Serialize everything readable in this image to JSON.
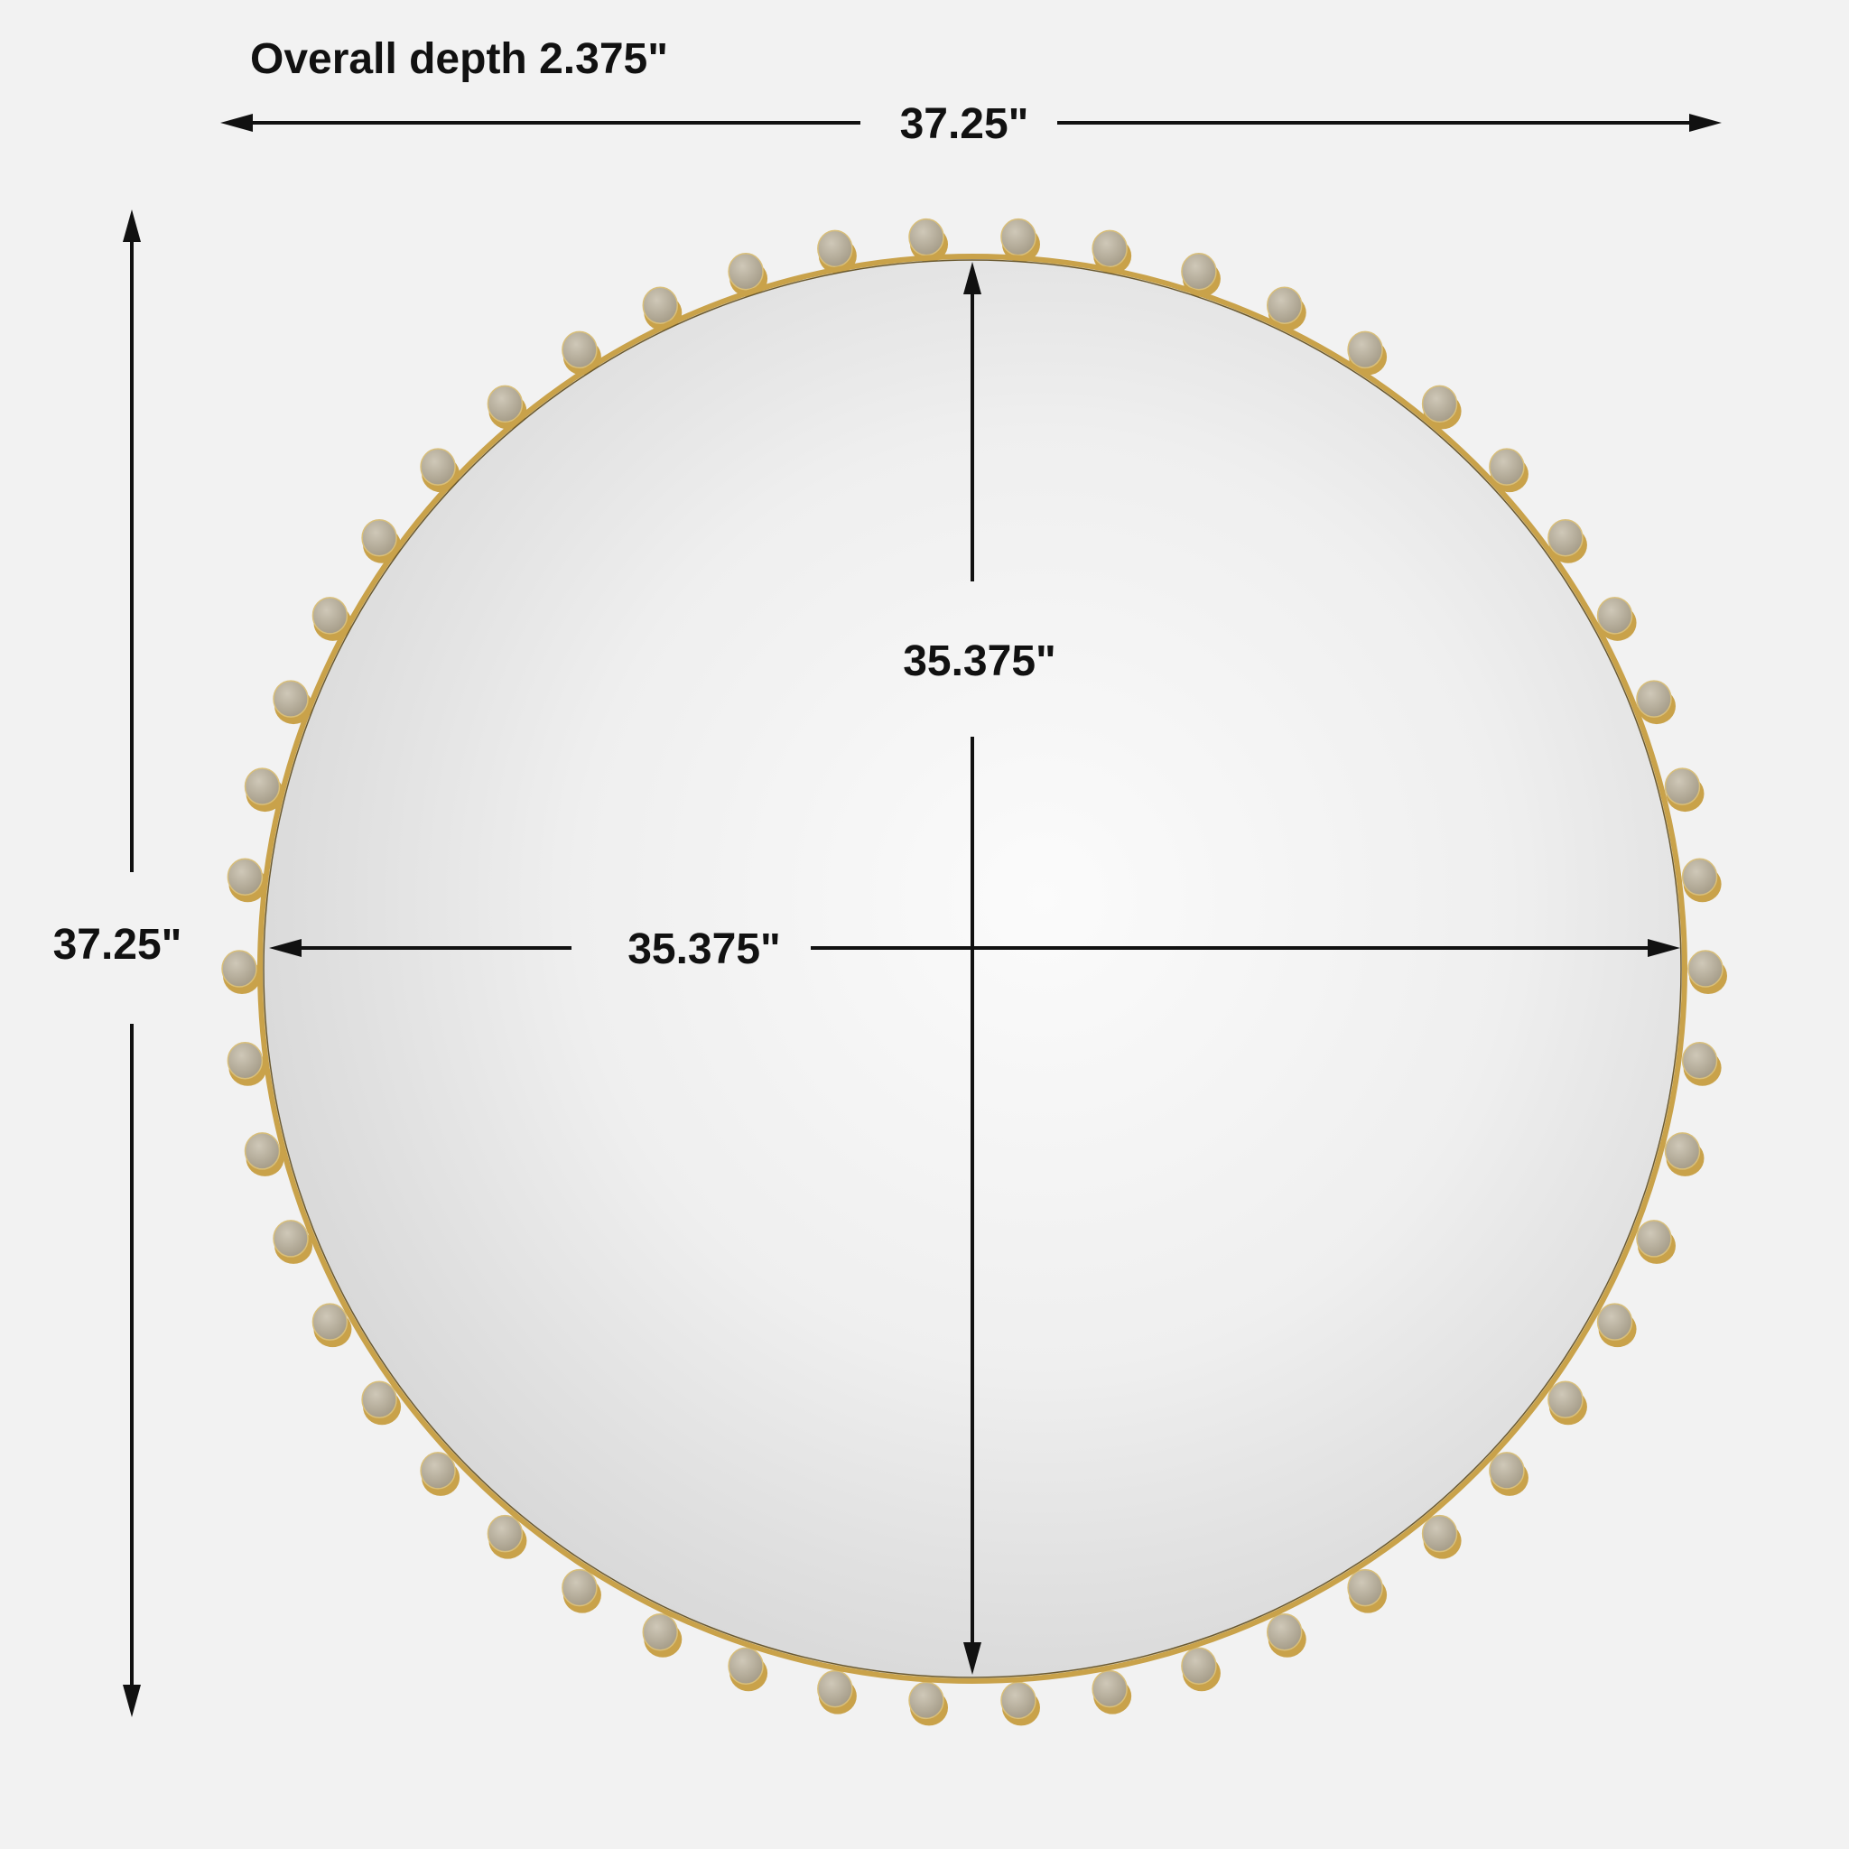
{
  "title": "Overall depth 2.375\"",
  "dimensions": {
    "overall_width": "37.25\"",
    "overall_height": "37.25\"",
    "mirror_height": "35.375\"",
    "mirror_width": "35.375\""
  },
  "colors": {
    "background": "#f2f2f2",
    "frame_gold": "#c9a24a",
    "knob_face": "#b9b2a2",
    "arrow": "#111111"
  }
}
